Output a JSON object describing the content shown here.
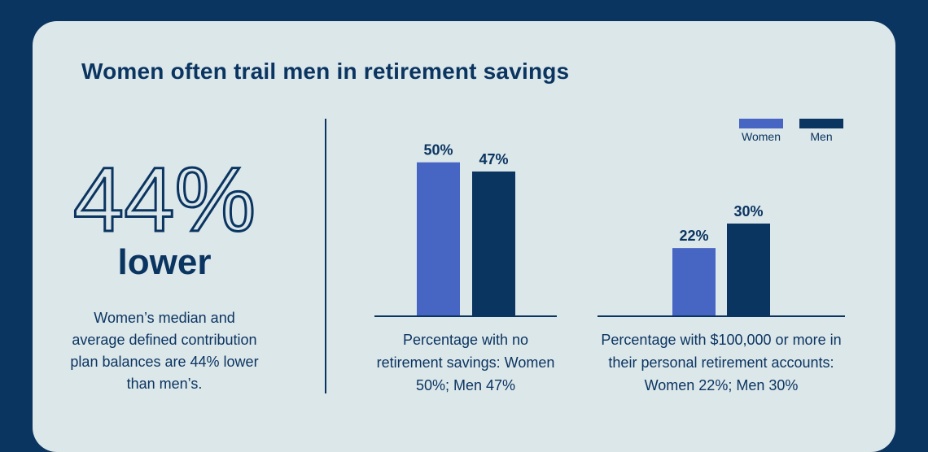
{
  "title": "Women often trail men in retirement savings",
  "stat": {
    "value": "44%",
    "sub": "lower",
    "description": "Women’s median and average defined contribution plan balances are 44% lower than men’s."
  },
  "colors": {
    "background": "#0b3561",
    "card": "#dce7ea",
    "women": "#4765c2",
    "men": "#0b3561",
    "text": "#0b3561"
  },
  "legend": [
    {
      "label": "Women",
      "color": "#4765c2"
    },
    {
      "label": "Men",
      "color": "#0b3561"
    }
  ],
  "chart_data": [
    {
      "type": "bar",
      "categories": [
        "Women",
        "Men"
      ],
      "values": [
        50,
        47
      ],
      "labels": [
        "50%",
        "47%"
      ],
      "caption": "Percentage with no retirement savings: Women 50%; Men 47%",
      "ylim": [
        0,
        60
      ]
    },
    {
      "type": "bar",
      "categories": [
        "Women",
        "Men"
      ],
      "values": [
        22,
        30
      ],
      "labels": [
        "22%",
        "30%"
      ],
      "caption": "Percentage with $100,000 or more in their personal retirement accounts: Women 22%; Men 30%",
      "ylim": [
        0,
        60
      ]
    }
  ]
}
